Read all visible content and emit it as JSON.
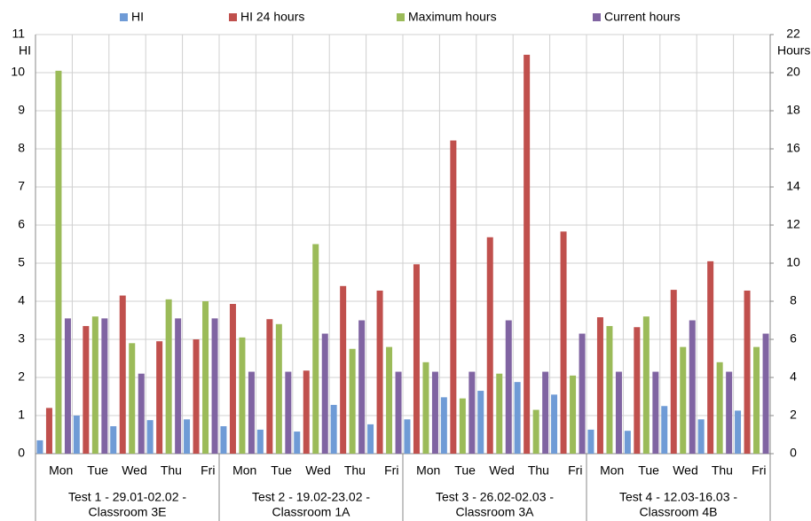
{
  "chart_data": {
    "type": "bar",
    "y_label": "HI",
    "y2_label": "Hours",
    "groups": [
      {
        "label": [
          "Test 1 - 29.01-02.02 -",
          "Classroom 3E"
        ],
        "categories": [
          "Mon",
          "Tue",
          "Wed",
          "Thu",
          "Fri"
        ]
      },
      {
        "label": [
          "Test 2 - 19.02-23.02 -",
          "Classroom 1A"
        ],
        "categories": [
          "Mon",
          "Tue",
          "Wed",
          "Thu",
          "Fri"
        ]
      },
      {
        "label": [
          "Test 3 - 26.02-02.03 -",
          "Classroom 3A"
        ],
        "categories": [
          "Mon",
          "Tue",
          "Wed",
          "Thu",
          "Fri"
        ]
      },
      {
        "label": [
          "Test 4 - 12.03-16.03 -",
          "Classroom 4B"
        ],
        "categories": [
          "Mon",
          "Tue",
          "Wed",
          "Thu",
          "Fri"
        ]
      }
    ],
    "series": [
      {
        "name": "HI",
        "color": "#6f9bd6",
        "values": [
          0.35,
          1.0,
          0.72,
          0.88,
          0.9,
          0.72,
          0.63,
          0.58,
          1.28,
          0.77,
          0.9,
          1.48,
          1.65,
          1.88,
          1.55,
          0.63,
          0.6,
          1.25,
          0.9,
          1.13
        ]
      },
      {
        "name": "HI 24 hours",
        "color": "#c0504d",
        "values": [
          1.2,
          3.35,
          4.15,
          2.95,
          3.0,
          3.93,
          3.53,
          2.18,
          4.4,
          4.28,
          4.97,
          8.22,
          5.68,
          10.47,
          5.83,
          3.58,
          3.32,
          4.3,
          5.05,
          4.28
        ]
      },
      {
        "name": "Maximum hours",
        "color": "#9bbb59",
        "axis": "y2",
        "values": [
          20.1,
          7.2,
          5.8,
          8.1,
          8.0,
          6.1,
          6.8,
          11.0,
          5.5,
          5.6,
          4.8,
          2.9,
          4.2,
          2.3,
          4.1,
          6.7,
          7.2,
          5.6,
          4.8,
          5.6
        ]
      },
      {
        "name": "Current hours",
        "color": "#8064a2",
        "axis": "y2",
        "values": [
          7.1,
          7.1,
          4.2,
          7.1,
          7.1,
          4.3,
          4.3,
          6.3,
          7.0,
          4.3,
          4.3,
          4.3,
          7.0,
          4.3,
          6.3,
          4.3,
          4.3,
          7.0,
          4.3,
          6.3
        ]
      }
    ],
    "ylim": [
      0,
      11
    ],
    "yticks": [
      0,
      1,
      2,
      3,
      4,
      5,
      6,
      7,
      8,
      9,
      10,
      11
    ],
    "y2lim": [
      0,
      22
    ],
    "y2ticks": [
      0,
      2,
      4,
      6,
      8,
      10,
      12,
      14,
      16,
      18,
      20,
      22
    ],
    "grid": true,
    "legend": "top"
  }
}
